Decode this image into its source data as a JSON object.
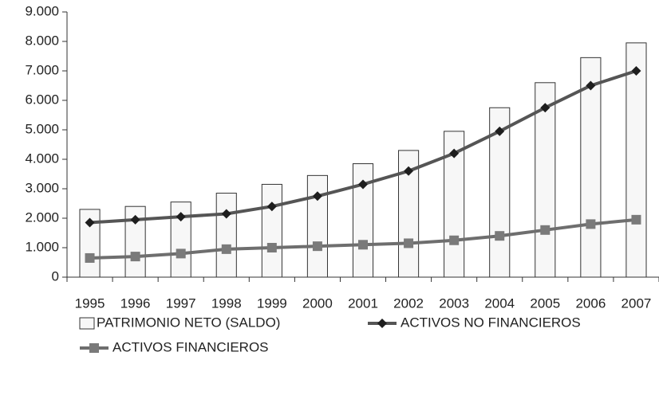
{
  "chart_data": {
    "type": "bar",
    "categories": [
      "1995",
      "1996",
      "1997",
      "1998",
      "1999",
      "2000",
      "2001",
      "2002",
      "2003",
      "2004",
      "2005",
      "2006",
      "2007"
    ],
    "series": [
      {
        "name": "PATRIMONIO NETO (SALDO)",
        "type": "bar",
        "color": "#f7f7f7",
        "values": [
          2300,
          2400,
          2550,
          2850,
          3150,
          3450,
          3850,
          4300,
          4950,
          5750,
          6600,
          7450,
          7950
        ]
      },
      {
        "name": "ACTIVOS NO FINANCIEROS",
        "type": "line",
        "marker": "diamond",
        "color": "#555555",
        "marker_color": "#1e1e1e",
        "values": [
          1850,
          1950,
          2050,
          2150,
          2400,
          2750,
          3150,
          3600,
          4200,
          4950,
          5750,
          6500,
          7000
        ]
      },
      {
        "name": "ACTIVOS FINANCIEROS",
        "type": "line",
        "marker": "square",
        "color": "#6e6e6e",
        "marker_color": "#7a7a7a",
        "values": [
          650,
          700,
          800,
          950,
          1000,
          1050,
          1100,
          1150,
          1250,
          1400,
          1600,
          1800,
          1950
        ]
      }
    ],
    "ylim": [
      0,
      9000
    ],
    "yticks": [
      0,
      {
        "value": 1000,
        "label": "1.000"
      },
      {
        "value": 2000,
        "label": "2.000"
      },
      {
        "value": 3000,
        "label": "3.000"
      },
      {
        "value": 4000,
        "label": "4.000"
      },
      {
        "value": 5000,
        "label": "5.000"
      },
      {
        "value": 6000,
        "label": "6.000"
      },
      {
        "value": 7000,
        "label": "7.000"
      },
      {
        "value": 8000,
        "label": "8.000"
      },
      {
        "value": 9000,
        "label": "9.000"
      }
    ],
    "grid": false,
    "legend": "bottom"
  }
}
